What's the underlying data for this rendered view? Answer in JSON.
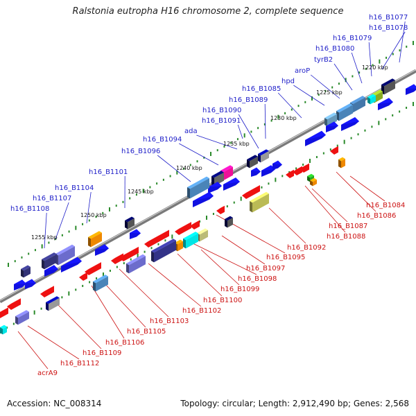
{
  "title": "Ralstonia eutropha H16 chromosome 2, complete sequence",
  "footer": {
    "accession": "Accession: NC_008314",
    "summary": "Topology: circular; Length: 2,912,490 bp; Genes: 2,568"
  },
  "colors": {
    "forward_label": "#1c1cc8",
    "reverse_label": "#cc1111",
    "backbone": "#808080",
    "tick": "#2a8a2a"
  },
  "scale_labels": [
    "1220 kbp",
    "1225 kbp",
    "1230 kbp",
    "1235 kbp",
    "1240 kbp",
    "1245 kbp",
    "1250 kbp",
    "1255 kbp"
  ],
  "forward_genes": [
    "h16_B1077",
    "h16_B1078",
    "h16_B1079",
    "h16_B1080",
    "tyrB2",
    "aroP",
    "hpd",
    "h16_B1085",
    "h16_B1089",
    "h16_B1090",
    "h16_B1091",
    "ada",
    "h16_B1094",
    "h16_B1096",
    "h16_B1101",
    "h16_B1104",
    "h16_B1107",
    "h16_B1108"
  ],
  "reverse_genes": [
    "h16_B1084",
    "h16_B1086",
    "h16_B1087",
    "h16_B1088",
    "h16_B1092",
    "h16_B1095",
    "h16_B1097",
    "h16_B1098",
    "h16_B1099",
    "h16_B1100",
    "h16_B1102",
    "h16_B1103",
    "h16_B1105",
    "h16_B1106",
    "h16_B1109",
    "h16_B1112",
    "acrA9"
  ]
}
